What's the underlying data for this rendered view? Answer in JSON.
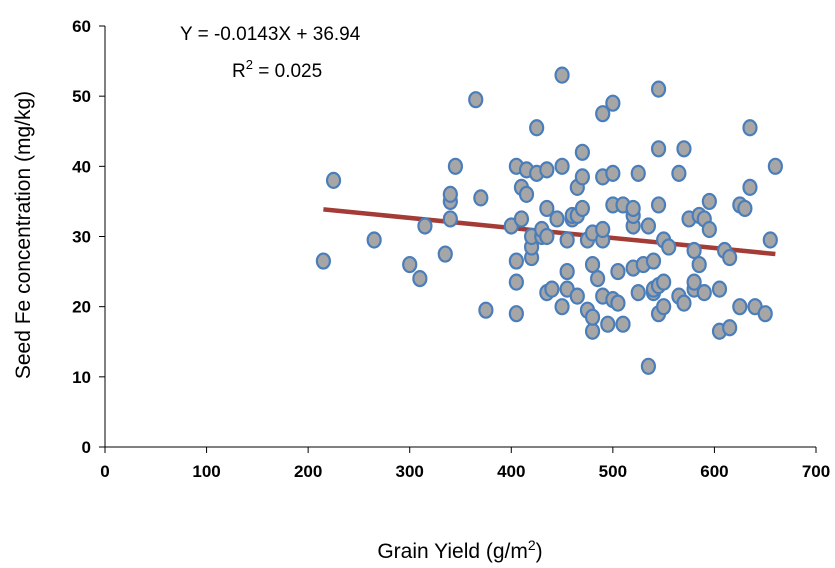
{
  "chart_data": {
    "type": "scatter",
    "title": "",
    "xlabel": "Grain Yield (g/m",
    "xlabel_sup": "2",
    "xlabel_close": ")",
    "ylabel": "Seed Fe concentration (mg/kg)",
    "xlim": [
      0,
      700
    ],
    "ylim": [
      0,
      60
    ],
    "xticks": [
      "0",
      "100",
      "200",
      "300",
      "400",
      "500",
      "600",
      "700"
    ],
    "yticks": [
      "0",
      "10",
      "20",
      "30",
      "40",
      "50",
      "60"
    ],
    "grid": false,
    "equation": "Y = -0.0143X + 36.94",
    "r2_prefix": "R",
    "r2_sup": "2",
    "r2_value": " = 0.025",
    "trendline": {
      "slope": -0.0143,
      "intercept": 36.94,
      "x_range": [
        215,
        660
      ],
      "color": "#A33B36"
    },
    "marker": {
      "fill": "#A6A6A6",
      "stroke": "#4A7EBB"
    },
    "points": [
      [
        215,
        26.5
      ],
      [
        225,
        38
      ],
      [
        265,
        29.5
      ],
      [
        300,
        26
      ],
      [
        310,
        24
      ],
      [
        315,
        31.5
      ],
      [
        335,
        27.5
      ],
      [
        340,
        32.5
      ],
      [
        340,
        35
      ],
      [
        340,
        36
      ],
      [
        345,
        40
      ],
      [
        365,
        49.5
      ],
      [
        370,
        35.5
      ],
      [
        375,
        19.5
      ],
      [
        400,
        31.5
      ],
      [
        405,
        19
      ],
      [
        405,
        23.5
      ],
      [
        405,
        26.5
      ],
      [
        405,
        40
      ],
      [
        410,
        32.5
      ],
      [
        410,
        37
      ],
      [
        415,
        36
      ],
      [
        415,
        39.5
      ],
      [
        420,
        27
      ],
      [
        420,
        28.5
      ],
      [
        420,
        30
      ],
      [
        425,
        45.5
      ],
      [
        425,
        39
      ],
      [
        430,
        30
      ],
      [
        430,
        31
      ],
      [
        435,
        22
      ],
      [
        435,
        30
      ],
      [
        435,
        34
      ],
      [
        435,
        39.5
      ],
      [
        440,
        22.5
      ],
      [
        445,
        32.5
      ],
      [
        450,
        20
      ],
      [
        450,
        40
      ],
      [
        450,
        53
      ],
      [
        455,
        22.5
      ],
      [
        455,
        25
      ],
      [
        455,
        29.5
      ],
      [
        460,
        32.5
      ],
      [
        460,
        33
      ],
      [
        465,
        21.5
      ],
      [
        465,
        33
      ],
      [
        465,
        37
      ],
      [
        470,
        34
      ],
      [
        470,
        38.5
      ],
      [
        470,
        42
      ],
      [
        475,
        19.5
      ],
      [
        475,
        29.5
      ],
      [
        480,
        16.5
      ],
      [
        480,
        18.5
      ],
      [
        480,
        26
      ],
      [
        480,
        30.5
      ],
      [
        485,
        24
      ],
      [
        490,
        21.5
      ],
      [
        490,
        29.5
      ],
      [
        490,
        31
      ],
      [
        490,
        38.5
      ],
      [
        490,
        47.5
      ],
      [
        495,
        17.5
      ],
      [
        500,
        21
      ],
      [
        500,
        34.5
      ],
      [
        500,
        39
      ],
      [
        500,
        49
      ],
      [
        505,
        20.5
      ],
      [
        505,
        25
      ],
      [
        510,
        17.5
      ],
      [
        510,
        34.5
      ],
      [
        520,
        25.5
      ],
      [
        520,
        31.5
      ],
      [
        520,
        33
      ],
      [
        520,
        34
      ],
      [
        525,
        22
      ],
      [
        525,
        39
      ],
      [
        530,
        26
      ],
      [
        535,
        11.5
      ],
      [
        535,
        31.5
      ],
      [
        540,
        22
      ],
      [
        540,
        22.5
      ],
      [
        540,
        26.5
      ],
      [
        545,
        19
      ],
      [
        545,
        23
      ],
      [
        545,
        34.5
      ],
      [
        545,
        42.5
      ],
      [
        545,
        51
      ],
      [
        550,
        20
      ],
      [
        550,
        23.5
      ],
      [
        550,
        29.5
      ],
      [
        555,
        28.5
      ],
      [
        565,
        21.5
      ],
      [
        565,
        39
      ],
      [
        570,
        20.5
      ],
      [
        570,
        42.5
      ],
      [
        575,
        32.5
      ],
      [
        580,
        22.5
      ],
      [
        580,
        23.5
      ],
      [
        580,
        28
      ],
      [
        585,
        26
      ],
      [
        585,
        33
      ],
      [
        590,
        22
      ],
      [
        590,
        32.5
      ],
      [
        595,
        31
      ],
      [
        595,
        35
      ],
      [
        605,
        16.5
      ],
      [
        605,
        22.5
      ],
      [
        610,
        28
      ],
      [
        615,
        17
      ],
      [
        615,
        27
      ],
      [
        625,
        20
      ],
      [
        625,
        34.5
      ],
      [
        630,
        34
      ],
      [
        635,
        37
      ],
      [
        635,
        45.5
      ],
      [
        640,
        20
      ],
      [
        650,
        19
      ],
      [
        655,
        29.5
      ],
      [
        660,
        40
      ]
    ]
  }
}
